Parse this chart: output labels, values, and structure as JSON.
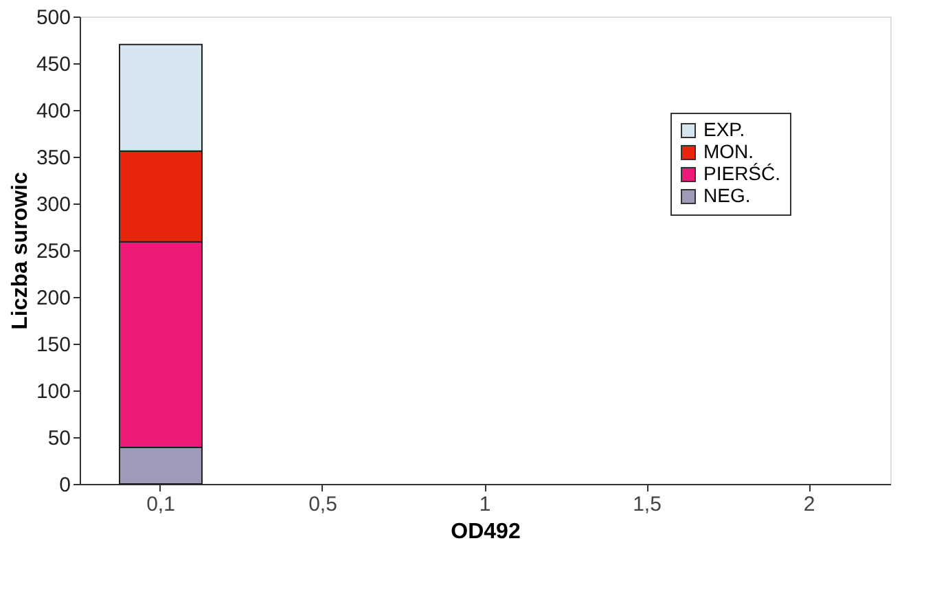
{
  "chart_data": {
    "type": "bar",
    "stacked": true,
    "xlabel": "OD492",
    "ylabel": "Liczba surowic",
    "categories": [
      "0,1",
      "0,5",
      "1",
      "1,5",
      "2"
    ],
    "series": [
      {
        "name": "NEG.",
        "color": "#a09ab8",
        "values": [
          39,
          null,
          null,
          null,
          null
        ]
      },
      {
        "name": "PIERŚĆ.",
        "color": "#ee1a78",
        "values": [
          220,
          null,
          null,
          null,
          null
        ]
      },
      {
        "name": "MON.",
        "color": "#e8260e",
        "values": [
          97,
          null,
          null,
          null,
          null
        ]
      },
      {
        "name": "EXP.",
        "color": "#d6e6f0",
        "values": [
          114,
          null,
          null,
          null,
          null
        ]
      }
    ],
    "ylim": [
      0,
      500
    ],
    "yticks": [
      0,
      50,
      100,
      150,
      200,
      250,
      300,
      350,
      400,
      450,
      500
    ],
    "grid": false,
    "legend": "top right"
  }
}
